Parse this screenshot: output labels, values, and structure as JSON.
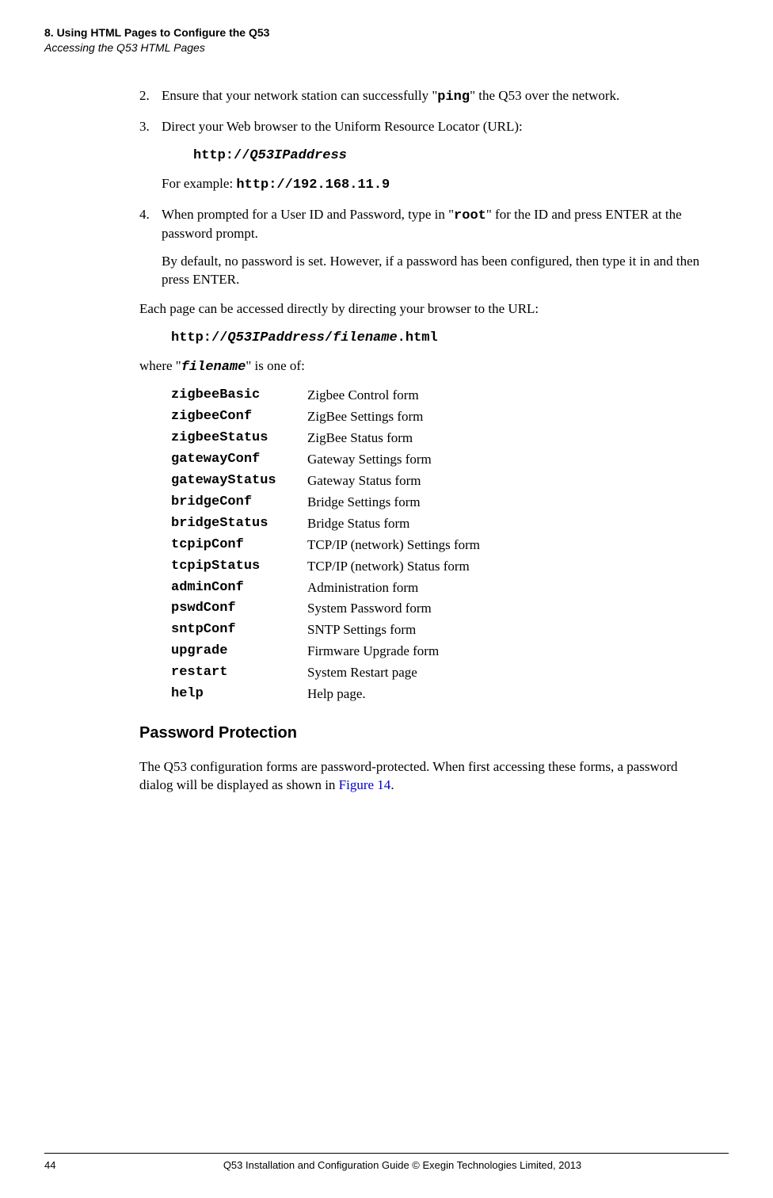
{
  "header": {
    "line1": "8. Using HTML Pages to Configure the Q53",
    "line2": "Accessing the Q53 HTML Pages"
  },
  "steps": {
    "s2": {
      "num": "2.",
      "pre": "Ensure that your network station can successfully \"",
      "ping": "ping",
      "post": "\" the Q53 over the network."
    },
    "s3": {
      "num": "3.",
      "text": "Direct your Web browser to the Uniform Resource Locator (URL):",
      "url_prefix": "http://",
      "url_host": "Q53IPaddress",
      "eg_label": "For example: ",
      "eg_url": "http://192.168.11.9"
    },
    "s4": {
      "num": "4.",
      "pre": "When prompted for a User ID and Password, type in \"",
      "root": "root",
      "post": "\" for the ID and press ENTER at the password prompt.",
      "para2": "By default, no password is set. However, if a password has been configured, then type it in and then press ENTER."
    }
  },
  "direct": {
    "intro": "Each page can be accessed directly by directing your browser to the URL:",
    "url_prefix": "http://",
    "url_host": "Q53IPaddress",
    "url_sep": "/",
    "url_file": "filename",
    "url_ext": ".html",
    "where_pre": "where \"",
    "where_file": "filename",
    "where_post": "\" is one of:"
  },
  "files": [
    {
      "name": "zigbeeBasic",
      "desc": "Zigbee Control form"
    },
    {
      "name": "zigbeeConf",
      "desc": "ZigBee Settings form"
    },
    {
      "name": "zigbeeStatus",
      "desc": "ZigBee Status form"
    },
    {
      "name": "gatewayConf",
      "desc": "Gateway Settings form"
    },
    {
      "name": "gatewayStatus",
      "desc": "Gateway Status form"
    },
    {
      "name": "bridgeConf",
      "desc": "Bridge Settings form"
    },
    {
      "name": "bridgeStatus",
      "desc": "Bridge Status form"
    },
    {
      "name": "tcpipConf",
      "desc": "TCP/IP (network) Settings form"
    },
    {
      "name": "tcpipStatus",
      "desc": "TCP/IP (network) Status form"
    },
    {
      "name": "adminConf",
      "desc": "Administration form"
    },
    {
      "name": "pswdConf",
      "desc": "System Password form"
    },
    {
      "name": "sntpConf",
      "desc": "SNTP Settings form"
    },
    {
      "name": "upgrade",
      "desc": "Firmware Upgrade form"
    },
    {
      "name": "restart",
      "desc": "System Restart page"
    },
    {
      "name": "help",
      "desc": "Help page."
    }
  ],
  "section": {
    "heading": "Password Protection",
    "body_pre": "The Q53 configuration forms are password-protected. When first accessing these forms, a password dialog will be displayed as shown in ",
    "body_link": "Figure 14",
    "body_post": "."
  },
  "footer": {
    "page": "44",
    "text": "Q53 Installation and Configuration Guide  © Exegin Technologies Limited, 2013"
  }
}
